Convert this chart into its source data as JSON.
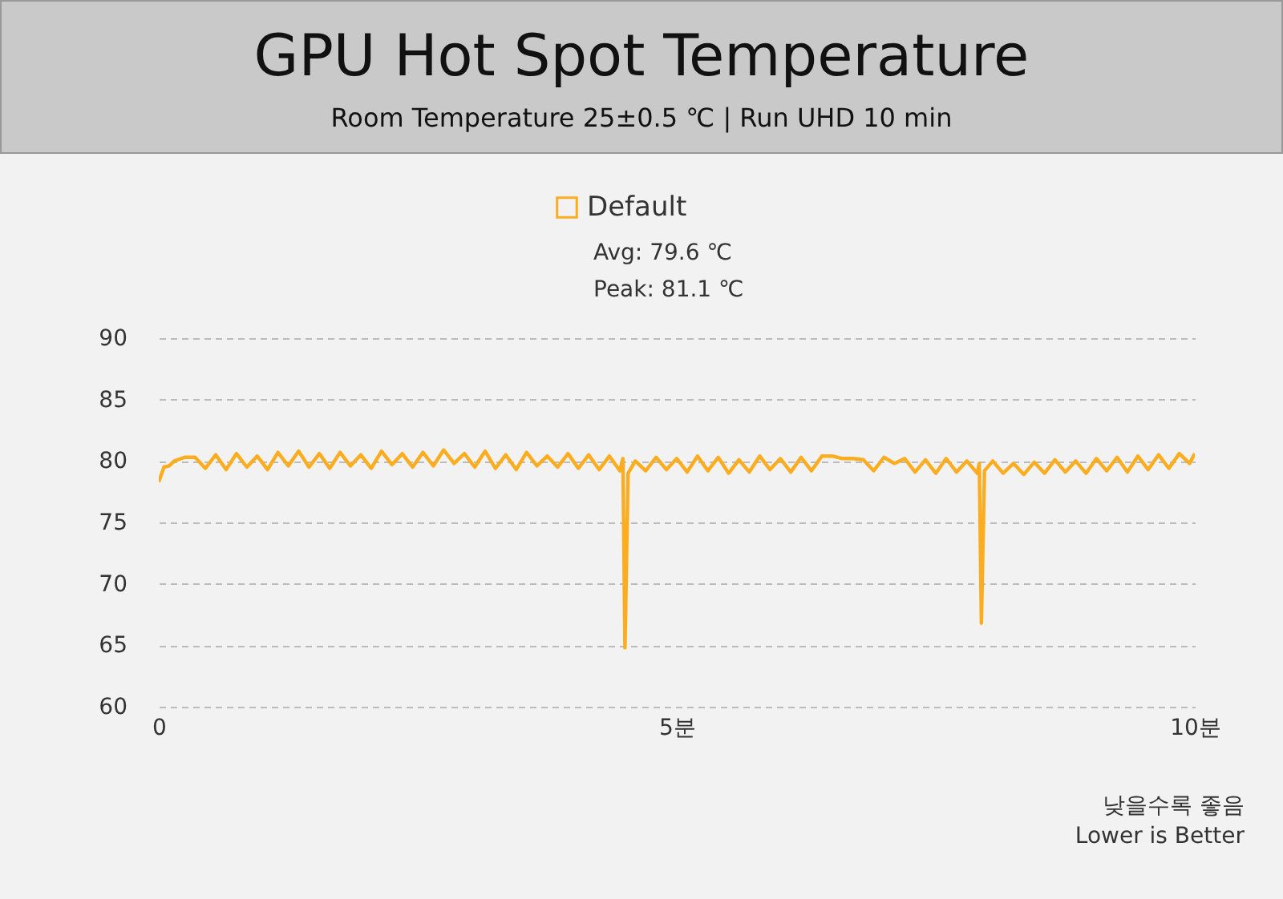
{
  "chart_data": {
    "type": "line",
    "title": "GPU Hot Spot Temperature",
    "subtitle": "Room Temperature 25±0.5 ℃  |  Run UHD 10 min",
    "x": [
      0,
      0.05,
      0.1,
      0.15,
      0.25,
      0.35,
      0.45,
      0.55,
      0.65,
      0.75,
      0.85,
      0.95,
      1.05,
      1.15,
      1.25,
      1.35,
      1.45,
      1.55,
      1.65,
      1.75,
      1.85,
      1.95,
      2.05,
      2.15,
      2.25,
      2.35,
      2.45,
      2.55,
      2.65,
      2.75,
      2.85,
      2.95,
      3.05,
      3.15,
      3.25,
      3.35,
      3.45,
      3.55,
      3.65,
      3.75,
      3.85,
      3.95,
      4.05,
      4.15,
      4.25,
      4.35,
      4.45,
      4.48,
      4.5,
      4.53,
      4.6,
      4.7,
      4.8,
      4.9,
      5.0,
      5.1,
      5.2,
      5.3,
      5.4,
      5.5,
      5.6,
      5.7,
      5.8,
      5.9,
      6.0,
      6.1,
      6.2,
      6.3,
      6.4,
      6.5,
      6.6,
      6.7,
      6.8,
      6.9,
      7.0,
      7.1,
      7.2,
      7.3,
      7.4,
      7.5,
      7.6,
      7.7,
      7.8,
      7.9,
      7.92,
      7.94,
      7.97,
      8.05,
      8.15,
      8.25,
      8.35,
      8.45,
      8.55,
      8.65,
      8.75,
      8.85,
      8.95,
      9.05,
      9.15,
      9.25,
      9.35,
      9.45,
      9.55,
      9.65,
      9.75,
      9.85,
      9.95,
      10
    ],
    "series": [
      {
        "name": "Default",
        "color": "#fbad1f",
        "values": [
          78.3,
          79.5,
          79.6,
          80.0,
          80.3,
          80.3,
          79.4,
          80.5,
          79.3,
          80.6,
          79.5,
          80.4,
          79.3,
          80.7,
          79.6,
          80.8,
          79.5,
          80.6,
          79.4,
          80.7,
          79.6,
          80.5,
          79.4,
          80.8,
          79.7,
          80.6,
          79.5,
          80.7,
          79.6,
          80.9,
          79.8,
          80.6,
          79.5,
          80.8,
          79.4,
          80.5,
          79.3,
          80.7,
          79.6,
          80.4,
          79.5,
          80.6,
          79.4,
          80.5,
          79.3,
          80.4,
          79.2,
          80.2,
          64.8,
          79.0,
          80.0,
          79.2,
          80.3,
          79.3,
          80.2,
          79.1,
          80.4,
          79.2,
          80.3,
          79.0,
          80.1,
          79.1,
          80.4,
          79.3,
          80.2,
          79.1,
          80.3,
          79.2,
          80.4,
          80.4,
          80.2,
          80.2,
          80.1,
          79.2,
          80.3,
          79.8,
          80.2,
          79.1,
          80.1,
          79.0,
          80.2,
          79.1,
          80.0,
          79.0,
          79.8,
          66.8,
          79.2,
          80.0,
          79.0,
          79.8,
          78.9,
          79.9,
          79.0,
          80.1,
          79.1,
          80.0,
          79.0,
          80.2,
          79.2,
          80.3,
          79.1,
          80.4,
          79.3,
          80.5,
          79.4,
          80.6,
          79.8,
          80.6
        ]
      }
    ],
    "xlim": [
      0,
      10
    ],
    "xticks": [
      0,
      {
        "value": 5,
        "label": "5분"
      },
      {
        "value": 10,
        "label": "10분"
      }
    ],
    "ylim": [
      60,
      90
    ],
    "yticks": [
      60,
      65,
      70,
      75,
      80,
      85,
      90
    ],
    "grid": "y",
    "legend": "top",
    "line_style": "solid",
    "marker": "none",
    "annotations": [
      "Avg: 79.6 ℃",
      "Peak: 81.1 ℃",
      "낮을수록 좋음",
      "Lower is Better"
    ]
  }
}
